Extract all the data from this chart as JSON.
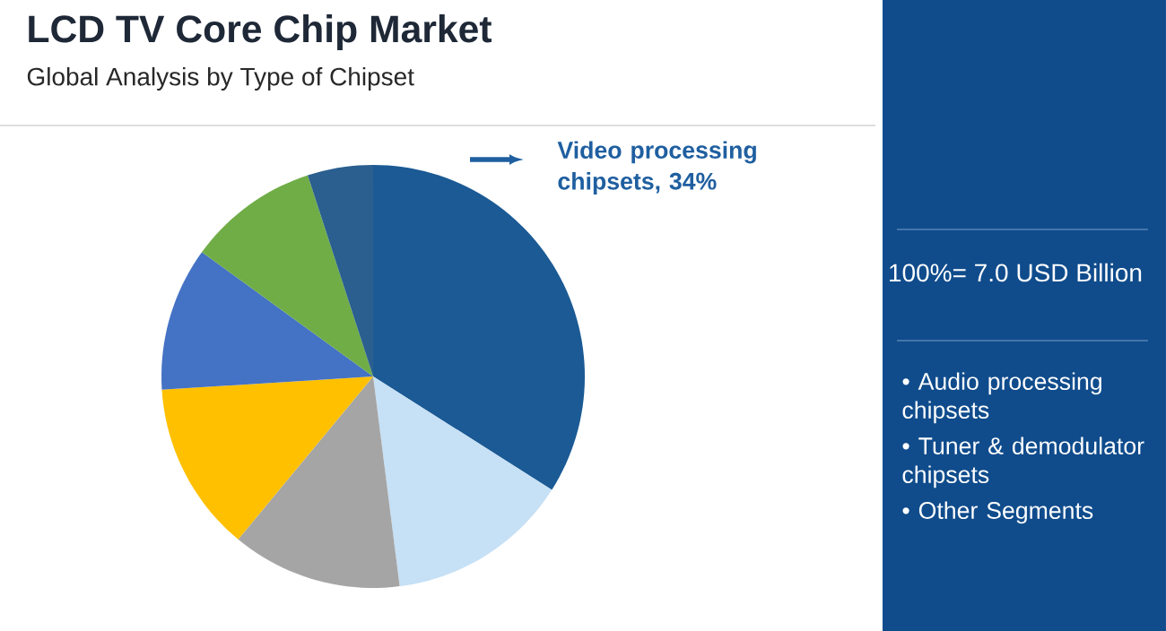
{
  "chart_data": {
    "type": "pie",
    "title": "LCD TV Core Chip Market",
    "subtitle": "Global Analysis by Type of Chipset",
    "categories": [
      "Video processing chipsets, 34%",
      null,
      null,
      null,
      null,
      null,
      null
    ],
    "values": [
      34,
      14,
      13,
      13,
      11,
      10,
      5
    ],
    "colors": [
      "#1b5a94",
      "#c6e0f5",
      "#a5a5a5",
      "#ffc000",
      "#4472c4",
      "#70ad47",
      "#2a5f8f"
    ],
    "annotations": [
      "100%= 7.0 USD Billion",
      "• Audio processing chipsets",
      "• Tuner & demodulator chipsets",
      "• Other Segments"
    ]
  }
}
